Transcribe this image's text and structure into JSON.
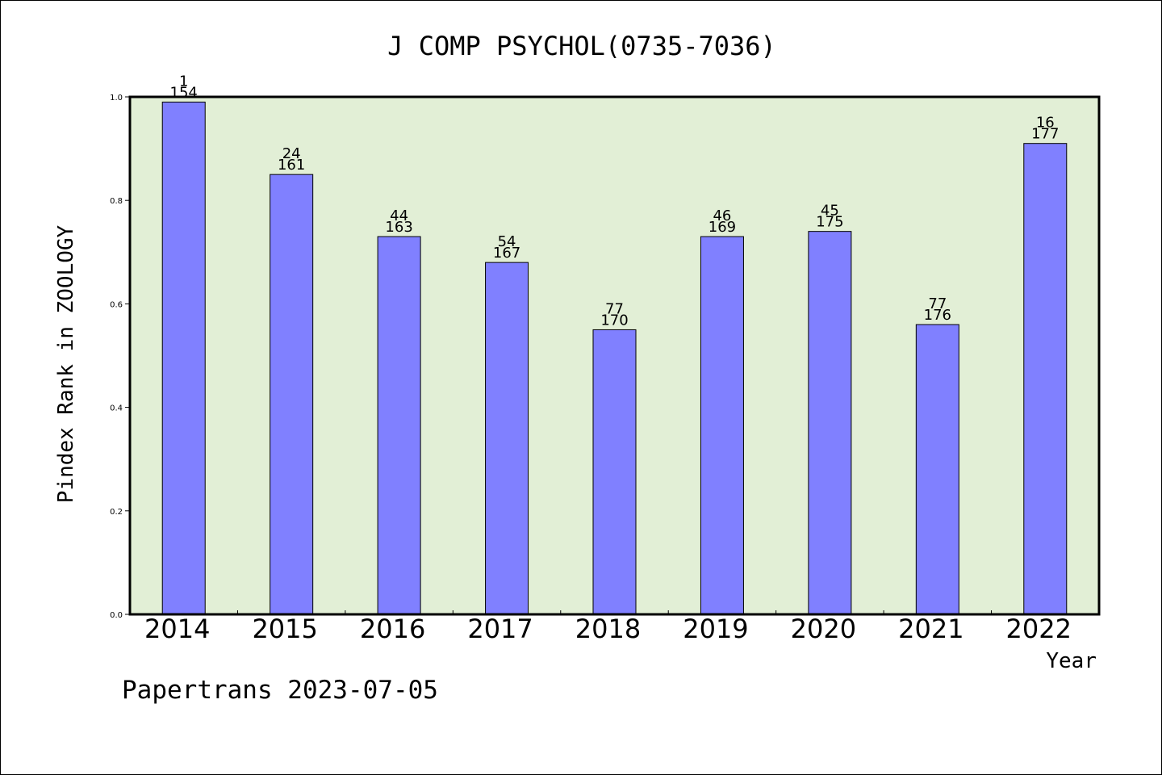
{
  "chart_data": {
    "type": "bar",
    "title": "J COMP PSYCHOL(0735-7036)",
    "xlabel": "Year",
    "ylabel": "Pindex Rank in ZOOLOGY",
    "footer": "Papertrans 2023-07-05",
    "categories": [
      "2014",
      "2015",
      "2016",
      "2017",
      "2018",
      "2019",
      "2020",
      "2021",
      "2022"
    ],
    "values": [
      0.99,
      0.85,
      0.73,
      0.68,
      0.55,
      0.73,
      0.74,
      0.56,
      0.91
    ],
    "rank": [
      "1",
      "24",
      "44",
      "54",
      "77",
      "46",
      "45",
      "77",
      "16"
    ],
    "total": [
      "154",
      "161",
      "163",
      "167",
      "170",
      "169",
      "175",
      "176",
      "177"
    ],
    "ylim": [
      0,
      1
    ],
    "yticks": [
      "0.0",
      "0.2",
      "0.4",
      "0.6",
      "0.8",
      "1.0"
    ],
    "colors": {
      "plot_background": "#e2efd6",
      "bar_fill": "#8080ff",
      "bar_stroke": "#000000"
    }
  }
}
